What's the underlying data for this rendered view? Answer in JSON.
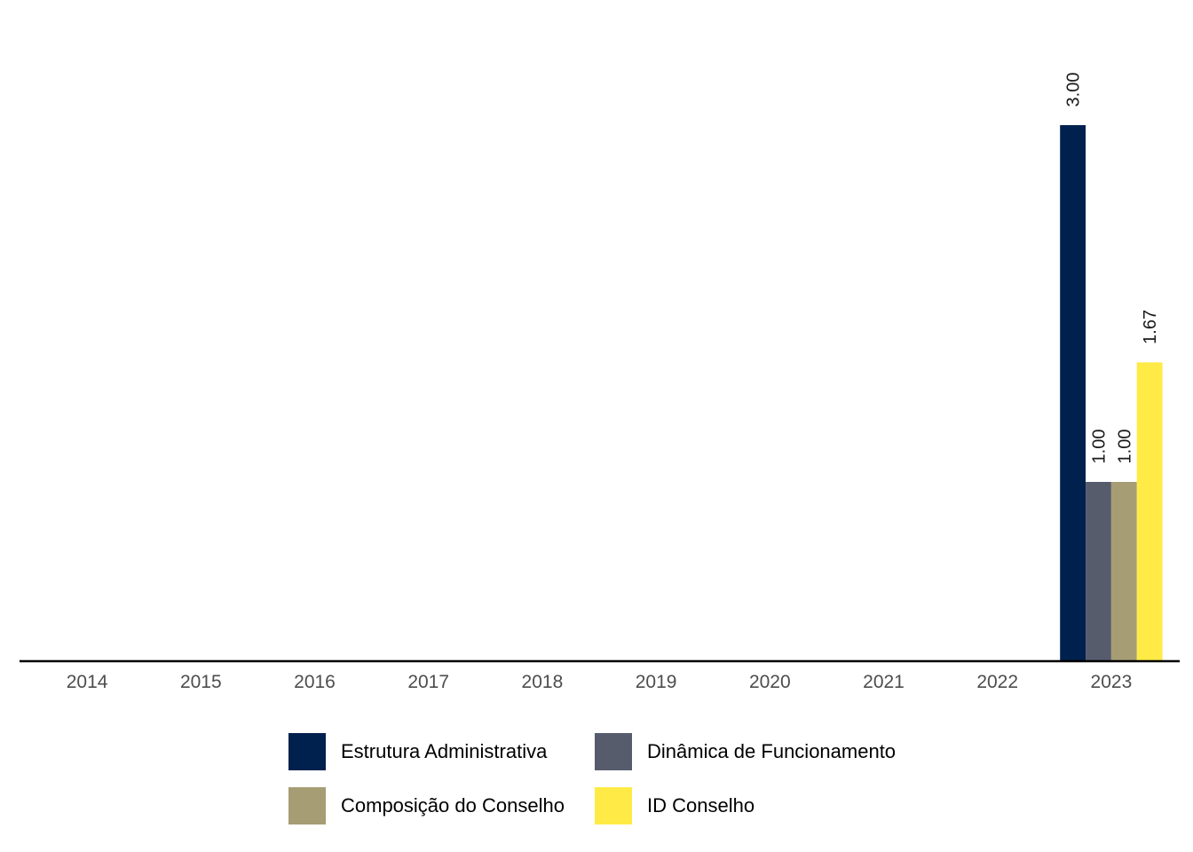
{
  "chart_data": {
    "type": "bar",
    "categories": [
      "2014",
      "2015",
      "2016",
      "2017",
      "2018",
      "2019",
      "2020",
      "2021",
      "2022",
      "2023"
    ],
    "series": [
      {
        "name": "Estrutura Administrativa",
        "color": "#00204D",
        "values": [
          null,
          null,
          null,
          null,
          null,
          null,
          null,
          null,
          null,
          3.0
        ]
      },
      {
        "name": "Dinâmica de Funcionamento",
        "color": "#575C6D",
        "values": [
          null,
          null,
          null,
          null,
          null,
          null,
          null,
          null,
          null,
          1.0
        ]
      },
      {
        "name": "Composição do Conselho",
        "color": "#A69D75",
        "values": [
          null,
          null,
          null,
          null,
          null,
          null,
          null,
          null,
          null,
          1.0
        ]
      },
      {
        "name": "ID Conselho",
        "color": "#FFEA46",
        "values": [
          null,
          null,
          null,
          null,
          null,
          null,
          null,
          null,
          null,
          1.67
        ]
      }
    ],
    "data_labels": [
      "3.00",
      "1.00",
      "1.00",
      "1.67"
    ],
    "ylim": [
      0,
      3.3
    ],
    "grid": false,
    "legend_position": "bottom"
  }
}
